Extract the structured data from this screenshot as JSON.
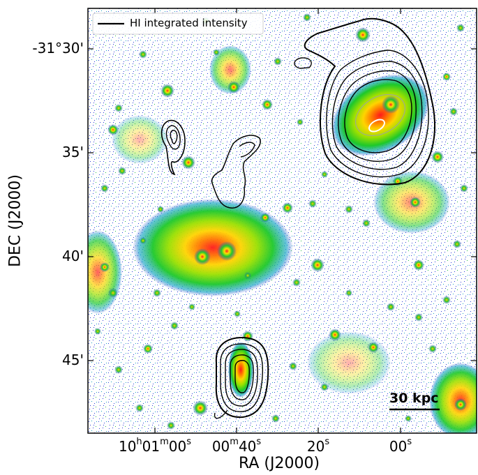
{
  "figure": {
    "xlabel": "RA (J2000)",
    "ylabel": "DEC (J2000)",
    "legend": {
      "entry": "HI integrated intensity",
      "placement": "top-left"
    },
    "scalebar": {
      "label": "30 kpc"
    },
    "yticks": [
      "-31°30'",
      "35'",
      "40'",
      "45'"
    ],
    "xticks": [
      {
        "main": "10",
        "s1": "h",
        "m": "01",
        "s2": "m",
        "v": "00",
        "s3": "s"
      },
      {
        "main": "00",
        "s1": "m",
        "m": "40",
        "s2": "s",
        "v": "",
        "s3": ""
      },
      {
        "main": "20",
        "s1": "s",
        "m": "",
        "s2": "",
        "v": "",
        "s3": ""
      },
      {
        "main": "00",
        "s1": "s",
        "m": "",
        "s2": "",
        "v": "",
        "s3": ""
      }
    ],
    "colors": {
      "contour": "#000000",
      "frame": "#000000",
      "noise": "#3b3fd8",
      "halo": "#22c52a",
      "core": "#e21f1f"
    }
  }
}
